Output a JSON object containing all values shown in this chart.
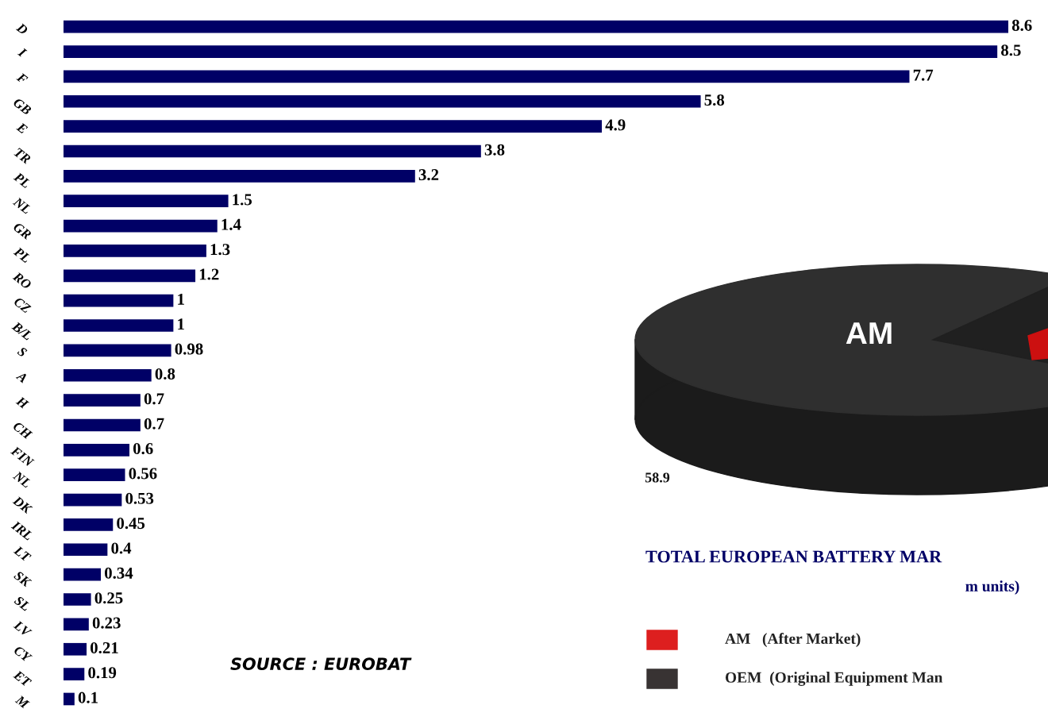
{
  "chart_data": [
    {
      "type": "bar",
      "orientation": "horizontal",
      "categories": [
        "D",
        "I",
        "F",
        "GB",
        "E",
        "TR",
        "PL",
        "NL",
        "GR",
        "PL",
        "RO",
        "CZ",
        "B/L",
        "S",
        "A",
        "H",
        "CH",
        "FIN",
        "NL",
        "DK",
        "IRL",
        "LT",
        "SK",
        "SL",
        "LV",
        "CY",
        "ET",
        "M"
      ],
      "values": [
        8.6,
        8.5,
        7.7,
        5.8,
        4.9,
        3.8,
        3.2,
        1.5,
        1.4,
        1.3,
        1.2,
        1,
        1,
        0.98,
        0.8,
        0.7,
        0.7,
        0.6,
        0.56,
        0.53,
        0.45,
        0.4,
        0.34,
        0.25,
        0.23,
        0.21,
        0.19,
        0.1
      ],
      "color": "#000066",
      "data_labels": true,
      "annotations": [
        "SOURCE : EUROBAT"
      ]
    },
    {
      "type": "other",
      "title": "TOTAL EUROPEAN BATTERY MAR",
      "subtitle": "m units)",
      "annotations": [
        "AM",
        "58.9",
        "AM   (After Market)",
        "OEM  (Original Equipment Man"
      ]
    }
  ]
}
